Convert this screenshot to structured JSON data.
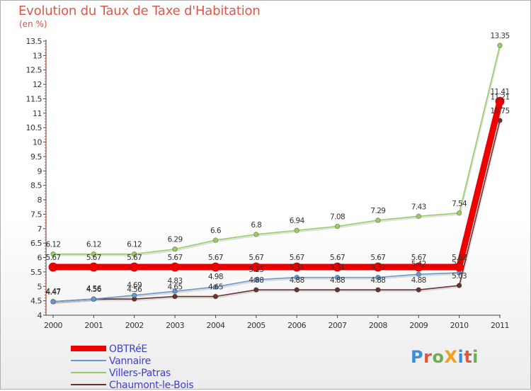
{
  "title": "Evolution du Taux de Taxe d'Habitation",
  "unit_label": "(en %)",
  "logo": {
    "text": "ProXiti"
  },
  "chart_data": {
    "type": "line",
    "title": "Evolution du Taux de Taxe d'Habitation",
    "ylabel": "(en %)",
    "xlabel": "",
    "ylim": [
      4,
      13.5
    ],
    "yticks": [
      "4",
      "4.5",
      "5",
      "5.5",
      "6",
      "6.5",
      "7",
      "7.5",
      "8",
      "8.5",
      "9",
      "9.5",
      "10",
      "10.5",
      "11",
      "11.5",
      "12",
      "12.5",
      "13",
      "13.5"
    ],
    "categories": [
      "2000",
      "2001",
      "2002",
      "2003",
      "2004",
      "2005",
      "2006",
      "2007",
      "2008",
      "2009",
      "2010",
      "2011"
    ],
    "grid": false,
    "legend_position": "bottom-left",
    "series": [
      {
        "name": "OBTRéE",
        "color": "#ee0000",
        "values": [
          5.67,
          5.67,
          5.67,
          5.67,
          5.67,
          5.67,
          5.67,
          5.67,
          5.67,
          5.67,
          5.67,
          11.41
        ],
        "labels": [
          "5.67",
          "5.67",
          "5.67",
          "5.67",
          "5.67",
          "5.67",
          "5.67",
          "5.67",
          "5.67",
          "5.67",
          "5.67",
          "11.41"
        ]
      },
      {
        "name": "Vannaire",
        "color": "#6699cc",
        "values": [
          4.47,
          4.56,
          4.69,
          4.83,
          4.98,
          5.23,
          5.31,
          5.31,
          5.31,
          5.42,
          5.47,
          11.21
        ],
        "labels": [
          "4.47",
          "4.56",
          "4.69",
          "4.83",
          "4.98",
          "5.23",
          "5.31",
          "5.31",
          "5.31",
          "5.42",
          "5.47",
          "11.21"
        ]
      },
      {
        "name": "Villers-Patras",
        "color": "#99cc66",
        "values": [
          6.12,
          6.12,
          6.12,
          6.29,
          6.6,
          6.8,
          6.94,
          7.08,
          7.29,
          7.43,
          7.54,
          13.35
        ],
        "labels": [
          "6.12",
          "6.12",
          "6.12",
          "6.29",
          "6.6",
          "6.8",
          "6.94",
          "7.08",
          "7.29",
          "7.43",
          "7.54",
          "13.35"
        ]
      },
      {
        "name": "Chaumont-le-Bois",
        "color": "#663333",
        "values": [
          4.47,
          4.56,
          4.56,
          4.65,
          4.65,
          4.88,
          4.88,
          4.88,
          4.88,
          4.88,
          5.03,
          10.75
        ],
        "labels": [
          "4.47",
          "4.56",
          "4.56",
          "4.65",
          "4.65",
          "4.88",
          "4.88",
          "4.88",
          "4.88",
          "4.88",
          "5.03",
          "10.75"
        ]
      }
    ]
  }
}
